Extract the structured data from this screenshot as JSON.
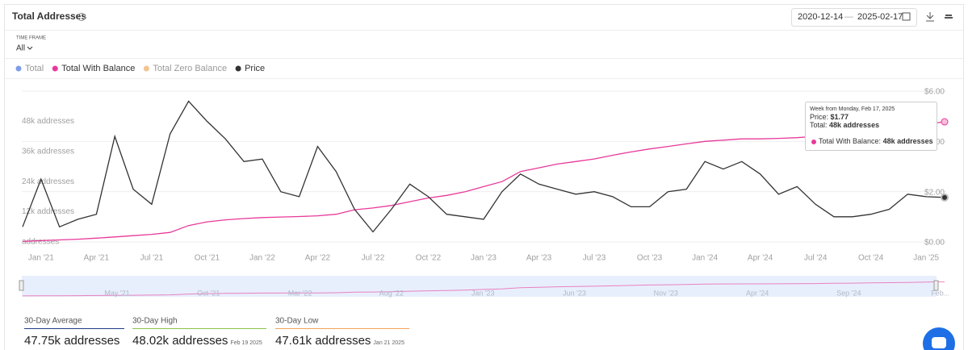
{
  "header": {
    "title": "Total Addresses",
    "date_from": "2020-12-14",
    "date_separator": "—",
    "date_to": "2025-02-17"
  },
  "time_frame": {
    "label": "TIME FRAME",
    "value": "All"
  },
  "chart_data": {
    "type": "line",
    "x": [
      "2020-12",
      "2021-01",
      "2021-02",
      "2021-03",
      "2021-04",
      "2021-05",
      "2021-06",
      "2021-07",
      "2021-08",
      "2021-09",
      "2021-10",
      "2021-11",
      "2021-12",
      "2022-01",
      "2022-02",
      "2022-03",
      "2022-04",
      "2022-05",
      "2022-06",
      "2022-07",
      "2022-08",
      "2022-09",
      "2022-10",
      "2022-11",
      "2022-12",
      "2023-01",
      "2023-02",
      "2023-03",
      "2023-04",
      "2023-05",
      "2023-06",
      "2023-07",
      "2023-08",
      "2023-09",
      "2023-10",
      "2023-11",
      "2023-12",
      "2024-01",
      "2024-02",
      "2024-03",
      "2024-04",
      "2024-05",
      "2024-06",
      "2024-07",
      "2024-08",
      "2024-09",
      "2024-10",
      "2024-11",
      "2024-12",
      "2025-01",
      "2025-02"
    ],
    "xlim": [
      "2020-12",
      "2025-02"
    ],
    "xticks": [
      {
        "value": "2021-01",
        "label": "Jan '21"
      },
      {
        "value": "2021-04",
        "label": "Apr '21"
      },
      {
        "value": "2021-07",
        "label": "Jul '21"
      },
      {
        "value": "2021-10",
        "label": "Oct '21"
      },
      {
        "value": "2022-01",
        "label": "Jan '22"
      },
      {
        "value": "2022-04",
        "label": "Apr '22"
      },
      {
        "value": "2022-07",
        "label": "Jul '22"
      },
      {
        "value": "2022-10",
        "label": "Oct '22"
      },
      {
        "value": "2023-01",
        "label": "Jan '23"
      },
      {
        "value": "2023-04",
        "label": "Apr '23"
      },
      {
        "value": "2023-07",
        "label": "Jul '23"
      },
      {
        "value": "2023-10",
        "label": "Oct '23"
      },
      {
        "value": "2024-01",
        "label": "Jan '24"
      },
      {
        "value": "2024-04",
        "label": "Apr '24"
      },
      {
        "value": "2024-07",
        "label": "Jul '24"
      },
      {
        "value": "2024-10",
        "label": "Oct '24"
      },
      {
        "value": "2025-01",
        "label": "Jan '25"
      }
    ],
    "ylim": [
      0,
      60000
    ],
    "yticks": [
      {
        "value": 0,
        "label": "addresses"
      },
      {
        "value": 12000,
        "label": "12k addresses"
      },
      {
        "value": 24000,
        "label": "24k addresses"
      },
      {
        "value": 36000,
        "label": "36k addresses"
      },
      {
        "value": 48000,
        "label": "48k addresses"
      }
    ],
    "y2lim": [
      0,
      6
    ],
    "y2ticks": [
      {
        "value": 0,
        "label": "$0.00"
      },
      {
        "value": 2,
        "label": "$2.00"
      },
      {
        "value": 4,
        "label": "$4.00"
      },
      {
        "value": 6,
        "label": "$6.00"
      }
    ],
    "grid": true,
    "series": [
      {
        "name": "Total",
        "color": "#7f9ce8",
        "hidden": true
      },
      {
        "name": "Total With Balance",
        "color": "#e8399a",
        "values": [
          200,
          500,
          800,
          1100,
          1500,
          2000,
          2500,
          3000,
          3800,
          6500,
          8000,
          8800,
          9300,
          9700,
          9900,
          10100,
          10400,
          11000,
          12800,
          13500,
          14500,
          16000,
          17500,
          18500,
          20000,
          22000,
          24000,
          28000,
          29500,
          31000,
          32000,
          33000,
          34500,
          35800,
          37000,
          38000,
          39000,
          40000,
          40500,
          41000,
          41000,
          41200,
          41500,
          42000,
          42800,
          43500,
          44200,
          45000,
          45800,
          46800,
          47800
        ]
      },
      {
        "name": "Total Zero Balance",
        "color": "#f2c491",
        "hidden": true
      },
      {
        "name": "Price",
        "color": "#333333",
        "axis": "y2",
        "values": [
          0.6,
          2.5,
          0.6,
          0.9,
          1.1,
          4.2,
          2.1,
          1.5,
          4.3,
          5.6,
          4.8,
          4.1,
          3.2,
          3.3,
          2.0,
          1.8,
          3.8,
          2.8,
          1.3,
          0.4,
          1.3,
          2.3,
          1.8,
          1.1,
          1.0,
          0.9,
          2.0,
          2.7,
          2.3,
          2.1,
          1.9,
          2.0,
          1.8,
          1.4,
          1.4,
          2.0,
          2.1,
          3.2,
          2.9,
          3.2,
          2.7,
          1.9,
          2.2,
          1.5,
          1.0,
          1.0,
          1.1,
          1.3,
          1.9,
          1.8,
          1.77
        ]
      }
    ],
    "tooltip": {
      "title": "Week from Monday, Feb 17, 2025",
      "price_label": "Price:",
      "price": "$1.77",
      "total_label": "Total:",
      "total": "48k addresses",
      "series_label": "Total With Balance:",
      "series_value": "48k addresses"
    },
    "navigator_labels": [
      "May '21",
      "Oct '21",
      "Mar '22",
      "Aug '22",
      "Jan '23",
      "Jun '23",
      "Nov '23",
      "Apr '24",
      "Sep '24",
      "Feb..."
    ]
  },
  "stats": [
    {
      "label": "30-Day Average",
      "value": "47.75k addresses",
      "color": "#1f3c88"
    },
    {
      "label": "30-Day High",
      "value": "48.02k addresses",
      "date": "Feb 19 2025",
      "color": "#8bc34a"
    },
    {
      "label": "30-Day Low",
      "value": "47.61k addresses",
      "date": "Jan 21 2025",
      "color": "#f4a259"
    }
  ]
}
